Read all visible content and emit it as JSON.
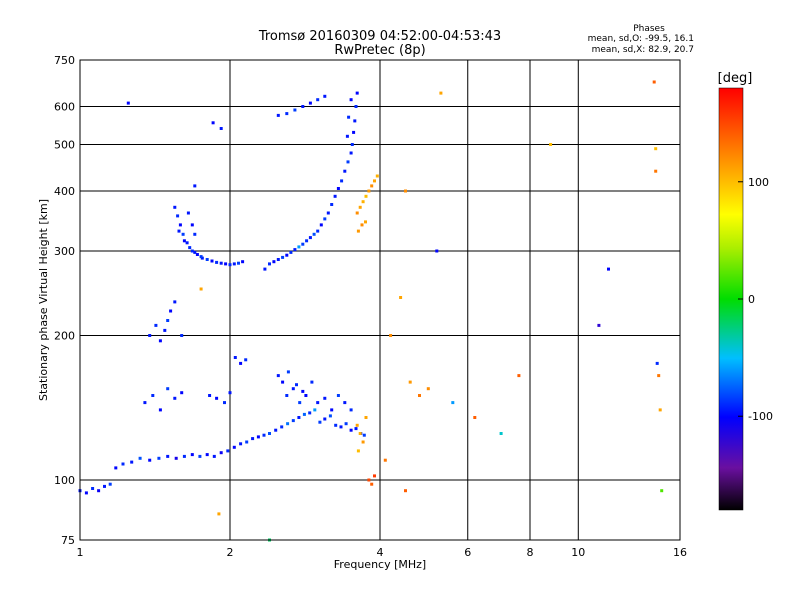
{
  "chart_data": {
    "type": "scatter",
    "title": "Tromsø 20160309 04:52:00-04:53:43",
    "subtitle": "RwPretec (8p)",
    "xlabel": "Frequency [MHz]",
    "ylabel": "Stationary phase Virtual Height [km]",
    "x_scale": "log",
    "y_scale": "log",
    "xlim": [
      1,
      16
    ],
    "ylim": [
      75,
      750
    ],
    "x_ticks": [
      1,
      2,
      4,
      6,
      8,
      10,
      16
    ],
    "x_tick_labels": [
      "1",
      "2",
      "4",
      "6",
      "8",
      "10",
      "16"
    ],
    "y_ticks": [
      75,
      100,
      200,
      300,
      400,
      500,
      600,
      750
    ],
    "y_tick_labels": [
      "75",
      "100",
      "200",
      "300",
      "400",
      "500",
      "600",
      "750"
    ],
    "grid": true,
    "stats": {
      "heading": "Phases",
      "line_o": "mean, sd,O: -99.5, 16.1",
      "line_x": "mean, sd,X:  82.9, 20.7"
    },
    "colorbar": {
      "label": "[deg]",
      "range": [
        -180,
        180
      ],
      "ticks": [
        100,
        0,
        -100
      ],
      "tick_labels": [
        "100",
        "0",
        "-100"
      ]
    },
    "series": [
      {
        "values": [
          [
            1.0,
            95,
            -95
          ],
          [
            1.03,
            94,
            -100
          ],
          [
            1.06,
            96,
            -90
          ],
          [
            1.09,
            95,
            -105
          ],
          [
            1.12,
            97,
            -95
          ],
          [
            1.15,
            98,
            -85
          ],
          [
            1.18,
            106,
            -100
          ],
          [
            1.22,
            108,
            -90
          ],
          [
            1.27,
            109,
            -95
          ],
          [
            1.32,
            111,
            -80
          ],
          [
            1.38,
            110,
            -100
          ],
          [
            1.44,
            111,
            -85
          ],
          [
            1.5,
            112,
            -95
          ],
          [
            1.56,
            111,
            -110
          ],
          [
            1.62,
            112,
            -90
          ],
          [
            1.68,
            113,
            -100
          ],
          [
            1.74,
            112,
            -85
          ],
          [
            1.8,
            113,
            -100
          ],
          [
            1.86,
            112,
            -95
          ],
          [
            1.92,
            114,
            -105
          ],
          [
            1.98,
            115,
            -90
          ],
          [
            2.04,
            117,
            -100
          ],
          [
            2.1,
            119,
            -95
          ],
          [
            2.16,
            120,
            -85
          ],
          [
            2.22,
            122,
            -95
          ],
          [
            2.28,
            123,
            -100
          ],
          [
            2.34,
            124,
            -90
          ],
          [
            2.4,
            125,
            -80
          ],
          [
            2.47,
            127,
            -95
          ],
          [
            2.54,
            129,
            -90
          ],
          [
            2.61,
            131,
            -70
          ],
          [
            2.68,
            133,
            -85
          ],
          [
            2.75,
            135,
            -95
          ],
          [
            2.82,
            137,
            -75
          ],
          [
            2.89,
            138,
            -90
          ],
          [
            2.96,
            140,
            -60
          ],
          [
            3.03,
            132,
            -85
          ],
          [
            3.1,
            134,
            -95
          ],
          [
            3.18,
            136,
            -80
          ],
          [
            3.26,
            130,
            -90
          ],
          [
            3.34,
            129,
            -95
          ],
          [
            3.42,
            131,
            -85
          ],
          [
            3.5,
            127,
            -100
          ],
          [
            3.58,
            128,
            -95
          ],
          [
            3.66,
            125,
            -90
          ],
          [
            3.72,
            124,
            -85
          ],
          [
            2.6,
            150,
            -90
          ],
          [
            2.68,
            155,
            -95
          ],
          [
            2.76,
            145,
            -85
          ],
          [
            2.84,
            150,
            -100
          ],
          [
            2.92,
            160,
            -90
          ],
          [
            3.0,
            145,
            -95
          ],
          [
            2.5,
            165,
            -95
          ],
          [
            2.55,
            160,
            -100
          ],
          [
            2.62,
            168,
            -85
          ],
          [
            2.72,
            158,
            -90
          ],
          [
            2.8,
            153,
            -100
          ],
          [
            3.3,
            150,
            -85
          ],
          [
            3.4,
            145,
            -95
          ],
          [
            3.5,
            140,
            -90
          ],
          [
            3.2,
            140,
            -100
          ],
          [
            3.1,
            148,
            -95
          ],
          [
            1.35,
            145,
            -95
          ],
          [
            1.4,
            150,
            -90
          ],
          [
            1.45,
            140,
            -100
          ],
          [
            1.5,
            155,
            -85
          ],
          [
            1.55,
            148,
            -95
          ],
          [
            1.6,
            152,
            -100
          ],
          [
            1.38,
            200,
            -95
          ],
          [
            1.42,
            210,
            -90
          ],
          [
            1.45,
            195,
            -100
          ],
          [
            1.48,
            205,
            -95
          ],
          [
            1.5,
            215,
            -85
          ],
          [
            1.52,
            225,
            -100
          ],
          [
            1.55,
            235,
            -95
          ],
          [
            1.82,
            150,
            -95
          ],
          [
            1.88,
            148,
            -100
          ],
          [
            1.95,
            145,
            -90
          ],
          [
            2.0,
            152,
            -95
          ],
          [
            2.05,
            180,
            -95
          ],
          [
            2.1,
            175,
            -100
          ],
          [
            2.15,
            178,
            -90
          ],
          [
            1.55,
            370,
            -95
          ],
          [
            1.57,
            355,
            -90
          ],
          [
            1.59,
            340,
            -100
          ],
          [
            1.61,
            325,
            -85
          ],
          [
            1.64,
            312,
            -95
          ],
          [
            1.68,
            300,
            -90
          ],
          [
            1.72,
            295,
            -100
          ],
          [
            1.76,
            290,
            -95
          ],
          [
            1.8,
            288,
            -85
          ],
          [
            1.84,
            286,
            -100
          ],
          [
            1.88,
            284,
            -90
          ],
          [
            1.92,
            283,
            -95
          ],
          [
            1.96,
            282,
            -100
          ],
          [
            2.0,
            281,
            -90
          ],
          [
            2.04,
            282,
            -95
          ],
          [
            2.08,
            283,
            -85
          ],
          [
            2.12,
            285,
            -100
          ],
          [
            1.58,
            330,
            -95
          ],
          [
            1.62,
            315,
            -100
          ],
          [
            1.66,
            305,
            -90
          ],
          [
            1.7,
            298,
            -95
          ],
          [
            1.75,
            292,
            -85
          ],
          [
            1.65,
            360,
            -95
          ],
          [
            1.68,
            340,
            -100
          ],
          [
            1.7,
            325,
            -90
          ],
          [
            2.35,
            275,
            -95
          ],
          [
            2.4,
            282,
            -90
          ],
          [
            2.45,
            285,
            -100
          ],
          [
            2.5,
            288,
            -95
          ],
          [
            2.55,
            291,
            -85
          ],
          [
            2.6,
            294,
            -100
          ],
          [
            2.65,
            298,
            -90
          ],
          [
            2.7,
            302,
            -95
          ],
          [
            2.75,
            306,
            -60
          ],
          [
            2.8,
            310,
            -85
          ],
          [
            2.85,
            315,
            -90
          ],
          [
            2.9,
            320,
            -95
          ],
          [
            2.95,
            325,
            -80
          ],
          [
            3.0,
            330,
            -90
          ],
          [
            3.05,
            340,
            -100
          ],
          [
            3.1,
            350,
            -85
          ],
          [
            3.15,
            360,
            -95
          ],
          [
            3.2,
            375,
            -90
          ],
          [
            3.25,
            390,
            -95
          ],
          [
            3.3,
            405,
            -100
          ],
          [
            3.35,
            420,
            -90
          ],
          [
            3.4,
            440,
            -95
          ],
          [
            3.45,
            460,
            -85
          ],
          [
            3.5,
            480,
            -95
          ],
          [
            3.52,
            500,
            -90
          ],
          [
            3.54,
            530,
            -100
          ],
          [
            3.56,
            560,
            -95
          ],
          [
            3.58,
            600,
            -90
          ],
          [
            3.6,
            640,
            -100
          ],
          [
            3.44,
            520,
            -95
          ],
          [
            3.46,
            570,
            -90
          ],
          [
            3.5,
            620,
            -100
          ],
          [
            2.5,
            575,
            -95
          ],
          [
            2.6,
            580,
            -90
          ],
          [
            2.7,
            590,
            -85
          ],
          [
            2.8,
            600,
            -95
          ],
          [
            2.9,
            610,
            -100
          ],
          [
            3.0,
            620,
            -90
          ],
          [
            3.1,
            630,
            -95
          ],
          [
            1.85,
            555,
            -100
          ],
          [
            1.92,
            540,
            -95
          ],
          [
            3.6,
            360,
            120
          ],
          [
            3.65,
            370,
            110
          ],
          [
            3.7,
            380,
            105
          ],
          [
            3.75,
            390,
            100
          ],
          [
            3.8,
            400,
            115
          ],
          [
            3.85,
            410,
            120
          ],
          [
            3.9,
            420,
            110
          ],
          [
            3.95,
            430,
            105
          ],
          [
            3.62,
            330,
            115
          ],
          [
            3.68,
            340,
            120
          ],
          [
            3.74,
            345,
            110
          ],
          [
            3.6,
            130,
            110
          ],
          [
            3.65,
            125,
            105
          ],
          [
            3.7,
            120,
            115
          ],
          [
            3.75,
            135,
            110
          ],
          [
            3.62,
            115,
            100
          ],
          [
            3.8,
            100,
            150
          ],
          [
            3.85,
            98,
            140
          ],
          [
            3.9,
            102,
            155
          ],
          [
            4.2,
            200,
            120
          ],
          [
            4.4,
            240,
            110
          ],
          [
            4.5,
            400,
            120
          ],
          [
            4.6,
            160,
            115
          ],
          [
            4.8,
            150,
            130
          ],
          [
            5.0,
            155,
            120
          ],
          [
            5.3,
            640,
            110
          ],
          [
            4.1,
            110,
            130
          ],
          [
            4.5,
            95,
            140
          ],
          [
            5.2,
            300,
            -100
          ],
          [
            5.6,
            145,
            -60
          ],
          [
            6.2,
            135,
            140
          ],
          [
            7.0,
            125,
            -40
          ],
          [
            7.6,
            165,
            140
          ],
          [
            8.8,
            500,
            100
          ],
          [
            11.0,
            210,
            -120
          ],
          [
            11.5,
            275,
            -100
          ],
          [
            14.2,
            675,
            140
          ],
          [
            14.3,
            440,
            130
          ],
          [
            14.4,
            175,
            -90
          ],
          [
            14.5,
            165,
            130
          ],
          [
            14.6,
            140,
            110
          ],
          [
            14.7,
            95,
            20
          ],
          [
            14.3,
            490,
            100
          ],
          [
            1.25,
            610,
            -100
          ],
          [
            1.7,
            410,
            -95
          ],
          [
            1.75,
            250,
            110
          ],
          [
            1.6,
            200,
            -90
          ],
          [
            2.4,
            75,
            -20
          ],
          [
            1.9,
            85,
            110
          ]
        ]
      }
    ]
  }
}
